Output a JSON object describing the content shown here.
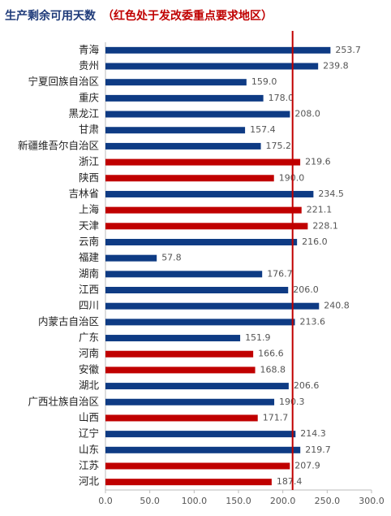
{
  "chart_data": {
    "type": "bar",
    "orientation": "horizontal",
    "title": "生产剩余可用天数",
    "title_note": "（红色处于发改委重点要求地区）",
    "categories": [
      "青海",
      "贵州",
      "宁夏回族自治区",
      "重庆",
      "黑龙江",
      "甘肃",
      "新疆维吾尔自治区",
      "浙江",
      "陕西",
      "吉林省",
      "上海",
      "天津",
      "云南",
      "福建",
      "湖南",
      "江西",
      "四川",
      "内蒙古自治区",
      "广东",
      "河南",
      "安徽",
      "湖北",
      "广西壮族自治区",
      "山西",
      "辽宁",
      "山东",
      "江苏",
      "河北"
    ],
    "values": [
      253.7,
      239.8,
      159.0,
      178.0,
      208.0,
      157.4,
      175.2,
      219.6,
      190.0,
      234.5,
      221.1,
      228.1,
      216.0,
      57.8,
      176.7,
      206.0,
      240.8,
      213.6,
      151.9,
      166.6,
      168.8,
      206.6,
      190.3,
      171.7,
      214.3,
      219.7,
      207.9,
      187.4
    ],
    "value_labels": [
      "253.7",
      "239.8",
      "159.0",
      "178.0",
      "208.0",
      "157.4",
      "175.2",
      "219.6",
      "190.0",
      "234.5",
      "221.1",
      "228.1",
      "216.0",
      "57.8",
      "176.7",
      "206.0",
      "240.8",
      "213.6",
      "151.9",
      "166.6",
      "168.8",
      "206.6",
      "190.3",
      "171.7",
      "214.3",
      "219.7",
      "207.9",
      "187.4"
    ],
    "colors": [
      "#0e3b84",
      "#0e3b84",
      "#0e3b84",
      "#0e3b84",
      "#0e3b84",
      "#0e3b84",
      "#0e3b84",
      "#c00000",
      "#c00000",
      "#0e3b84",
      "#c00000",
      "#c00000",
      "#0e3b84",
      "#0e3b84",
      "#0e3b84",
      "#0e3b84",
      "#0e3b84",
      "#0e3b84",
      "#0e3b84",
      "#c00000",
      "#c00000",
      "#0e3b84",
      "#0e3b84",
      "#c00000",
      "#0e3b84",
      "#0e3b84",
      "#c00000",
      "#c00000"
    ],
    "xlim": [
      0,
      300
    ],
    "xticks": [
      {
        "value": 0,
        "label": "0.0"
      },
      {
        "value": 50,
        "label": "50.0"
      },
      {
        "value": 100,
        "label": "100.0"
      },
      {
        "value": 150,
        "label": "150.0"
      },
      {
        "value": 200,
        "label": "200.0"
      },
      {
        "value": 250,
        "label": "250.0"
      },
      {
        "value": 300,
        "label": "300.0"
      }
    ],
    "reference_line": {
      "value": 211,
      "color": "#c00000"
    },
    "grid": false
  }
}
